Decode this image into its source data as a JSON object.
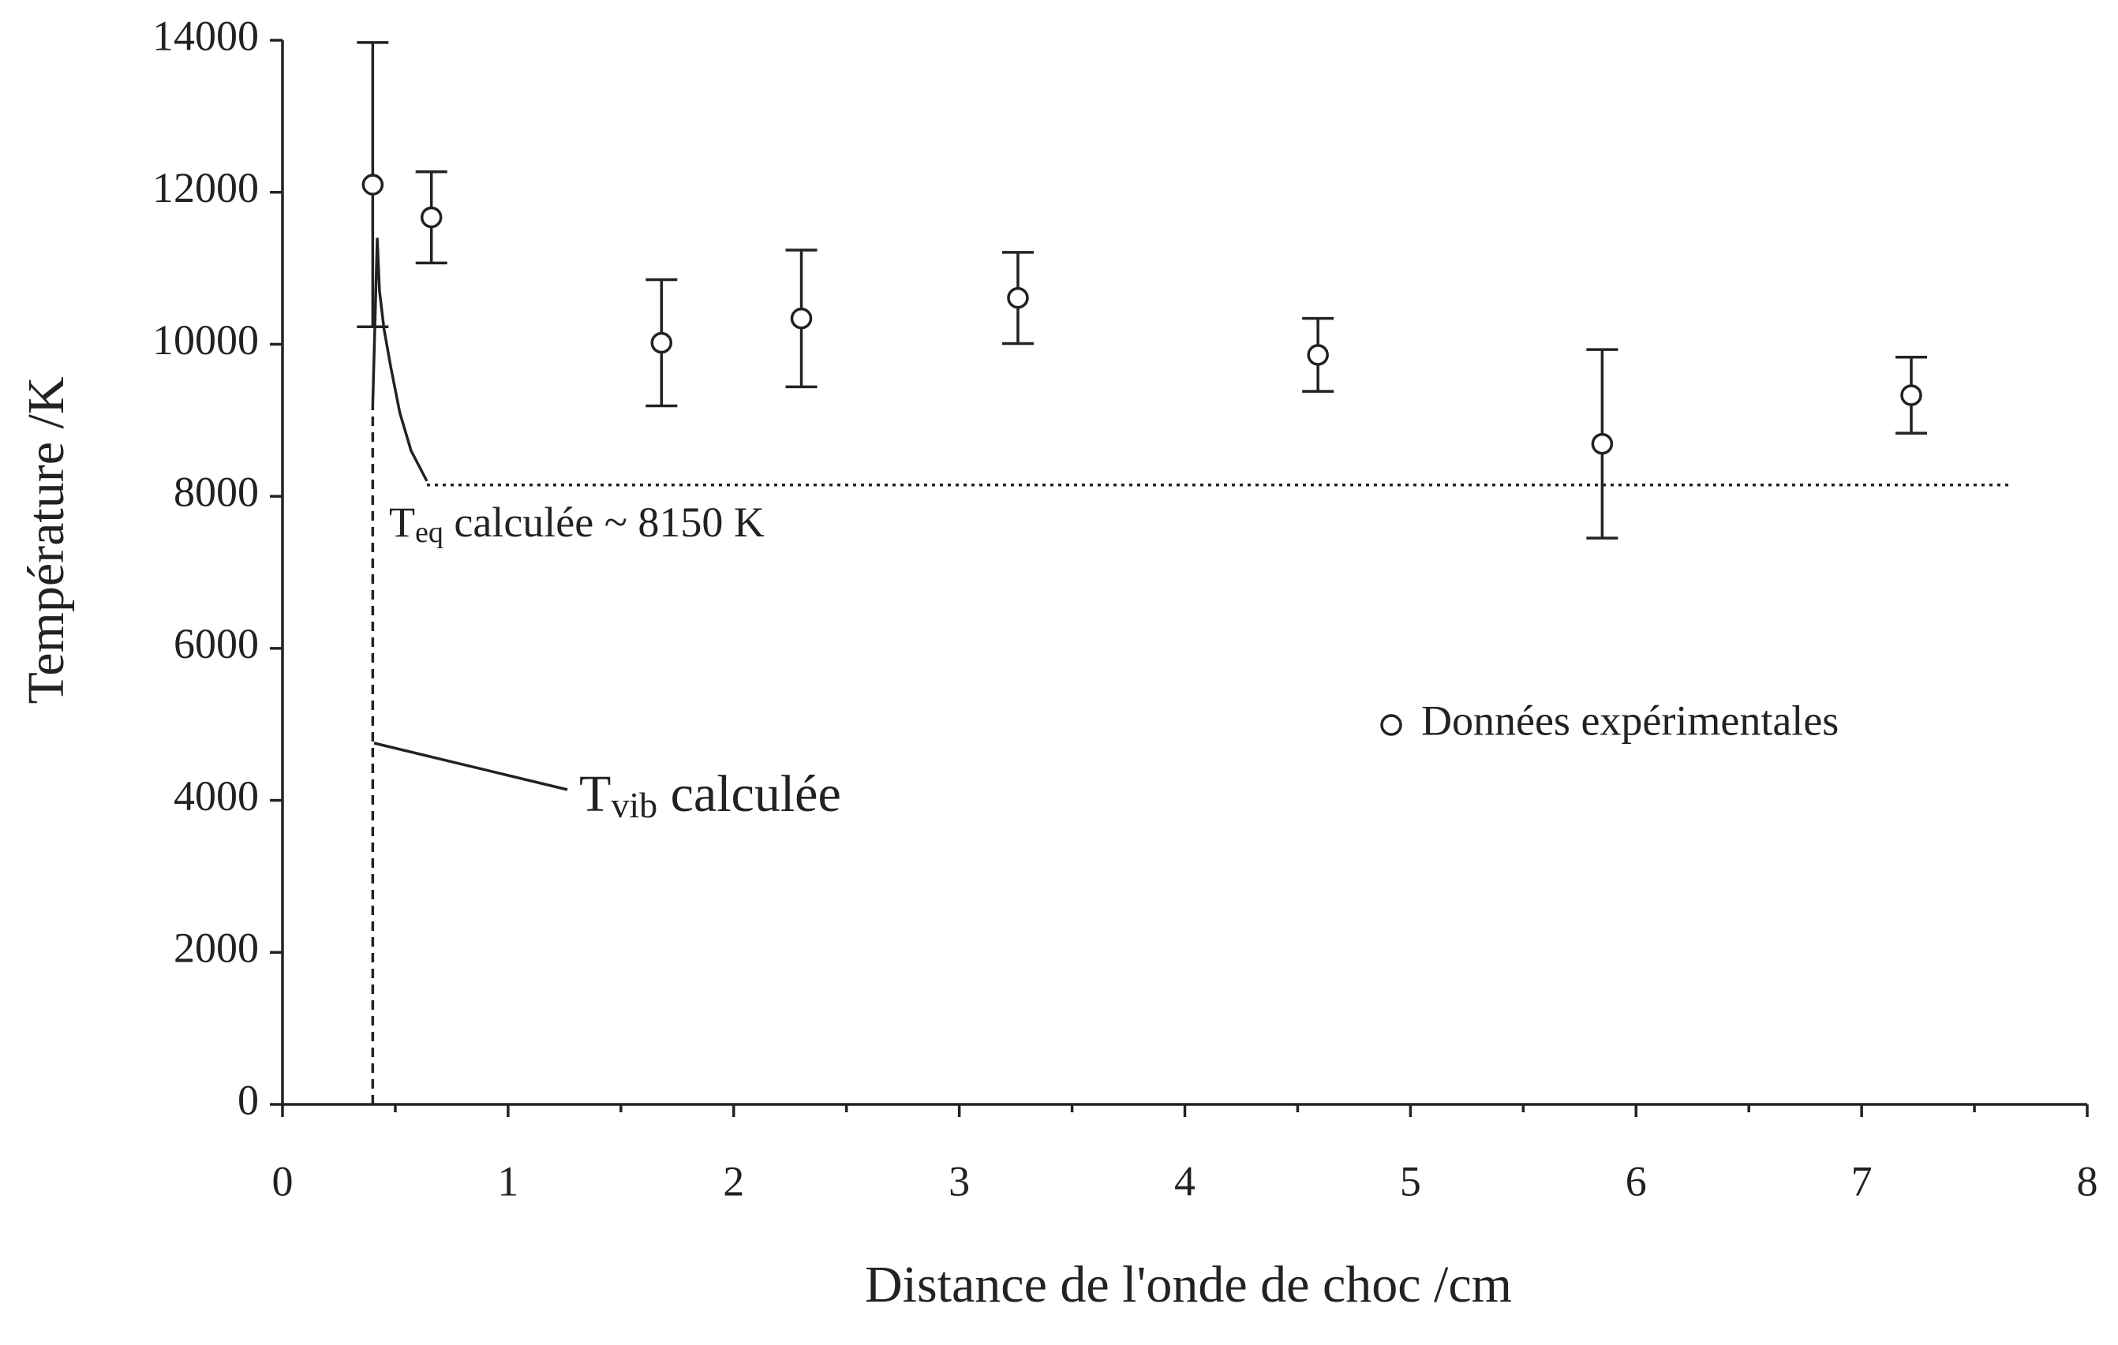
{
  "chart_data": {
    "type": "scatter",
    "xlabel": "Distance de l'onde de choc /cm",
    "ylabel": "Température /K",
    "xlim": [
      0,
      8
    ],
    "xticks": [
      0,
      1,
      2,
      3,
      4,
      5,
      6,
      7,
      8
    ],
    "xminorticks": [
      0.5,
      1.5,
      2.5,
      3.5,
      4.5,
      5.5,
      6.5,
      7.5
    ],
    "ylim": [
      0,
      14000
    ],
    "yticks": [
      0,
      2000,
      4000,
      6000,
      8000,
      10000,
      12000,
      14000
    ],
    "color": "#222222",
    "legend": "right",
    "series": [
      {
        "name": "Données expérimentales",
        "color": "#222222",
        "x": [
          0.4,
          0.66,
          1.68,
          2.3,
          3.26,
          4.59,
          5.85,
          7.22
        ],
        "values": [
          12100,
          11670,
          10020,
          10340,
          10610,
          9860,
          8690,
          9330
        ],
        "errors": [
          1870,
          600,
          830,
          900,
          600,
          480,
          1240,
          500
        ]
      }
    ],
    "curves": [
      {
        "style": "dashed",
        "x": [
          0.4,
          0.4
        ],
        "values": [
          0,
          9200
        ]
      },
      {
        "style": "solid",
        "x": [
          0.4,
          0.42,
          0.43,
          0.45,
          0.48,
          0.52,
          0.57,
          0.64
        ],
        "values": [
          9200,
          11400,
          10700,
          10200,
          9700,
          9100,
          8600,
          8200
        ]
      },
      {
        "style": "dotted",
        "x": [
          0.64,
          7.66
        ],
        "values": [
          8150,
          8150
        ]
      }
    ],
    "annotations": [
      {
        "text": "T",
        "sub": "eq",
        "rest": " calculée ~ 8150 K"
      },
      {
        "text": "T",
        "sub": "vib",
        "rest": " calculée"
      }
    ]
  }
}
